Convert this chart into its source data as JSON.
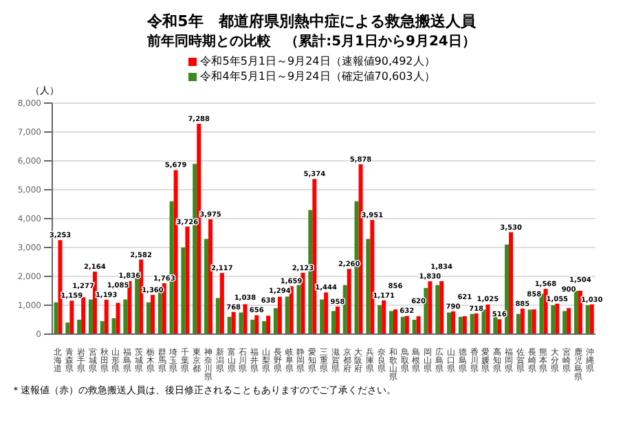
{
  "chart_data": {
    "type": "bar",
    "title": "令和5年　都道府県別熱中症による救急搬送人員",
    "subtitle": "前年同時期との比較　（累計:5月1日から9月24日）",
    "ylabel": "（人）",
    "categories": [
      "北海道",
      "青森県",
      "岩手県",
      "宮城県",
      "秋田県",
      "山形県",
      "福島県",
      "茨城県",
      "栃木県",
      "群馬県",
      "埼玉県",
      "千葉県",
      "東京都",
      "神奈川県",
      "新潟県",
      "富山県",
      "石川県",
      "福井県",
      "山梨県",
      "長野県",
      "岐阜県",
      "静岡県",
      "愛知県",
      "三重県",
      "滋賀県",
      "京都府",
      "大阪府",
      "兵庫県",
      "奈良県",
      "和歌山県",
      "鳥取県",
      "島根県",
      "岡山県",
      "広島県",
      "山口県",
      "徳島県",
      "香川県",
      "愛媛県",
      "高知県",
      "福岡県",
      "佐賀県",
      "長崎県",
      "熊本県",
      "大分県",
      "宮崎県",
      "鹿児島県",
      "沖縄県"
    ],
    "series": [
      {
        "name": "令和5年5月1日～9月24日（速報値90,492人）",
        "color": "#ff0000",
        "values": [
          3253,
          1159,
          1277,
          2164,
          1193,
          1085,
          1836,
          2582,
          1360,
          1763,
          5679,
          3726,
          7288,
          3975,
          2117,
          768,
          1038,
          656,
          638,
          1294,
          1659,
          2123,
          5374,
          1444,
          958,
          2260,
          5878,
          3951,
          1171,
          856,
          632,
          620,
          1830,
          1834,
          790,
          621,
          718,
          1025,
          516,
          3530,
          885,
          858,
          1568,
          1055,
          900,
          1504,
          1030
        ],
        "value_labels": [
          "3,253",
          "1,159",
          "1,277",
          "2,164",
          "1,193",
          "1,085",
          "1,836",
          "2,582",
          "1,360",
          "1,763",
          "5,679",
          "3,726",
          "7,288",
          "3,975",
          "2,117",
          "768",
          "1,038",
          "656",
          "638",
          "1,294",
          "1,659",
          "2,123",
          "5,374",
          "1,444",
          "958",
          "2,260",
          "5,878",
          "3,951",
          "1,171",
          "856",
          "632",
          "620",
          "1,830",
          "1,834",
          "790",
          "621",
          "718",
          "1,025",
          "516",
          "3,530",
          "885",
          "858",
          "1,568",
          "1,055",
          "900",
          "1,504",
          "1,030"
        ]
      },
      {
        "name": "令和4年5月1日～9月24日（確定値70,603人）",
        "color": "#3a8a1e",
        "values": [
          1100,
          400,
          500,
          1200,
          450,
          550,
          1200,
          2100,
          1100,
          1600,
          4600,
          3000,
          5900,
          3300,
          1250,
          600,
          750,
          500,
          450,
          900,
          1300,
          1700,
          4300,
          1200,
          800,
          1700,
          4600,
          3300,
          1000,
          800,
          600,
          500,
          1600,
          1700,
          750,
          600,
          700,
          850,
          600,
          3100,
          700,
          850,
          1400,
          1000,
          800,
          1500,
          1000
        ]
      }
    ],
    "ylim": [
      0,
      8000
    ],
    "yticks": [
      0,
      {
        "value": 1000,
        "label": "1,000"
      },
      {
        "value": 2000,
        "label": "2,000"
      },
      {
        "value": 3000,
        "label": "3,000"
      },
      {
        "value": 4000,
        "label": "4,000"
      },
      {
        "value": 5000,
        "label": "5,000"
      },
      {
        "value": 6000,
        "label": "6,000"
      },
      {
        "value": 7000,
        "label": "7,000"
      },
      {
        "value": 8000,
        "label": "8,000"
      }
    ],
    "grid": "y",
    "legend": "top",
    "annotations": [
      "＊速報値（赤）の救急搬送人員は、後日修正されることもありますのでご了承ください。"
    ]
  }
}
